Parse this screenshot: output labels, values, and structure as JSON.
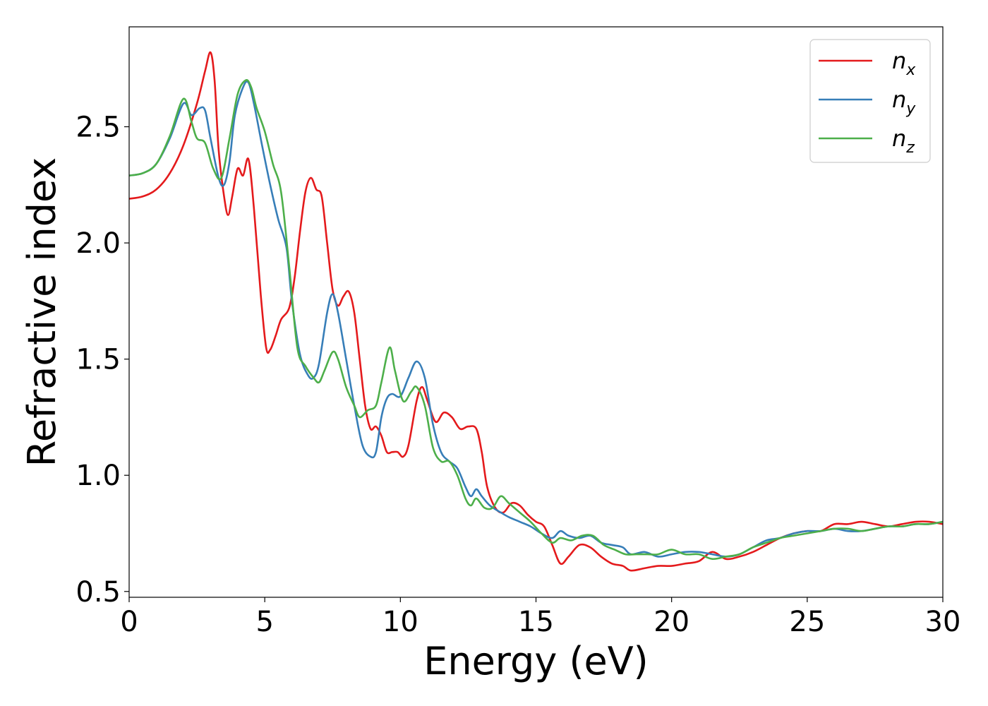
{
  "chart_data": {
    "type": "line",
    "xlabel": "Energy (eV)",
    "ylabel": "Refractive index",
    "xlim": [
      0,
      30
    ],
    "ylim": [
      0.475,
      2.93
    ],
    "xticks": [
      0,
      5,
      10,
      15,
      20,
      25,
      30
    ],
    "xtick_labels": [
      "0",
      "5",
      "10",
      "15",
      "20",
      "25",
      "30"
    ],
    "yticks": [
      0.5,
      1.0,
      1.5,
      2.0,
      2.5
    ],
    "ytick_labels": [
      "0.5",
      "1.0",
      "1.5",
      "2.0",
      "2.5"
    ],
    "grid": false,
    "legend_position": "top-right",
    "series": [
      {
        "name": "n",
        "subscript": "x",
        "color": "#e41a1c",
        "points": [
          [
            0,
            2.19
          ],
          [
            0.5,
            2.2
          ],
          [
            1,
            2.23
          ],
          [
            1.5,
            2.3
          ],
          [
            2,
            2.42
          ],
          [
            2.5,
            2.6
          ],
          [
            2.8,
            2.74
          ],
          [
            3.0,
            2.82
          ],
          [
            3.15,
            2.7
          ],
          [
            3.3,
            2.4
          ],
          [
            3.5,
            2.2
          ],
          [
            3.65,
            2.12
          ],
          [
            3.8,
            2.2
          ],
          [
            4.0,
            2.32
          ],
          [
            4.2,
            2.29
          ],
          [
            4.4,
            2.36
          ],
          [
            4.6,
            2.15
          ],
          [
            4.85,
            1.78
          ],
          [
            5.05,
            1.55
          ],
          [
            5.2,
            1.54
          ],
          [
            5.4,
            1.6
          ],
          [
            5.6,
            1.67
          ],
          [
            5.9,
            1.72
          ],
          [
            6.1,
            1.85
          ],
          [
            6.3,
            2.05
          ],
          [
            6.5,
            2.22
          ],
          [
            6.7,
            2.28
          ],
          [
            6.9,
            2.23
          ],
          [
            7.1,
            2.2
          ],
          [
            7.3,
            2.0
          ],
          [
            7.5,
            1.8
          ],
          [
            7.7,
            1.73
          ],
          [
            7.9,
            1.77
          ],
          [
            8.1,
            1.79
          ],
          [
            8.3,
            1.7
          ],
          [
            8.5,
            1.5
          ],
          [
            8.7,
            1.3
          ],
          [
            8.9,
            1.2
          ],
          [
            9.1,
            1.21
          ],
          [
            9.3,
            1.17
          ],
          [
            9.5,
            1.1
          ],
          [
            9.7,
            1.1
          ],
          [
            9.9,
            1.1
          ],
          [
            10.1,
            1.08
          ],
          [
            10.3,
            1.13
          ],
          [
            10.6,
            1.32
          ],
          [
            10.8,
            1.38
          ],
          [
            11.0,
            1.32
          ],
          [
            11.3,
            1.23
          ],
          [
            11.6,
            1.27
          ],
          [
            11.9,
            1.25
          ],
          [
            12.2,
            1.2
          ],
          [
            12.5,
            1.21
          ],
          [
            12.8,
            1.2
          ],
          [
            13.0,
            1.1
          ],
          [
            13.2,
            0.95
          ],
          [
            13.5,
            0.86
          ],
          [
            13.8,
            0.84
          ],
          [
            14.1,
            0.88
          ],
          [
            14.4,
            0.87
          ],
          [
            14.7,
            0.83
          ],
          [
            15.0,
            0.8
          ],
          [
            15.3,
            0.78
          ],
          [
            15.6,
            0.7
          ],
          [
            15.9,
            0.62
          ],
          [
            16.2,
            0.65
          ],
          [
            16.6,
            0.7
          ],
          [
            17.0,
            0.69
          ],
          [
            17.4,
            0.65
          ],
          [
            17.8,
            0.62
          ],
          [
            18.2,
            0.61
          ],
          [
            18.5,
            0.59
          ],
          [
            19.0,
            0.6
          ],
          [
            19.5,
            0.61
          ],
          [
            20.0,
            0.61
          ],
          [
            20.5,
            0.62
          ],
          [
            21.0,
            0.63
          ],
          [
            21.5,
            0.67
          ],
          [
            22.0,
            0.64
          ],
          [
            22.5,
            0.65
          ],
          [
            23.0,
            0.67
          ],
          [
            23.5,
            0.7
          ],
          [
            24.0,
            0.73
          ],
          [
            24.5,
            0.75
          ],
          [
            25.0,
            0.76
          ],
          [
            25.5,
            0.76
          ],
          [
            26.0,
            0.79
          ],
          [
            26.5,
            0.79
          ],
          [
            27.0,
            0.8
          ],
          [
            27.5,
            0.79
          ],
          [
            28.0,
            0.78
          ],
          [
            28.5,
            0.79
          ],
          [
            29.0,
            0.8
          ],
          [
            29.5,
            0.8
          ],
          [
            30.0,
            0.79
          ]
        ]
      },
      {
        "name": "n",
        "subscript": "y",
        "color": "#377eb8",
        "points": [
          [
            0,
            2.29
          ],
          [
            0.5,
            2.3
          ],
          [
            1,
            2.34
          ],
          [
            1.5,
            2.45
          ],
          [
            2.0,
            2.6
          ],
          [
            2.3,
            2.55
          ],
          [
            2.6,
            2.58
          ],
          [
            2.8,
            2.57
          ],
          [
            3.0,
            2.45
          ],
          [
            3.3,
            2.28
          ],
          [
            3.5,
            2.25
          ],
          [
            3.7,
            2.35
          ],
          [
            3.9,
            2.55
          ],
          [
            4.2,
            2.67
          ],
          [
            4.4,
            2.69
          ],
          [
            4.6,
            2.6
          ],
          [
            4.9,
            2.42
          ],
          [
            5.2,
            2.25
          ],
          [
            5.5,
            2.1
          ],
          [
            5.8,
            1.98
          ],
          [
            6.0,
            1.75
          ],
          [
            6.3,
            1.52
          ],
          [
            6.6,
            1.43
          ],
          [
            6.8,
            1.42
          ],
          [
            7.0,
            1.48
          ],
          [
            7.3,
            1.7
          ],
          [
            7.5,
            1.78
          ],
          [
            7.7,
            1.7
          ],
          [
            8.0,
            1.5
          ],
          [
            8.3,
            1.3
          ],
          [
            8.6,
            1.13
          ],
          [
            8.9,
            1.08
          ],
          [
            9.1,
            1.1
          ],
          [
            9.3,
            1.25
          ],
          [
            9.5,
            1.33
          ],
          [
            9.7,
            1.35
          ],
          [
            10.0,
            1.34
          ],
          [
            10.3,
            1.42
          ],
          [
            10.6,
            1.49
          ],
          [
            10.9,
            1.42
          ],
          [
            11.2,
            1.22
          ],
          [
            11.5,
            1.1
          ],
          [
            11.8,
            1.06
          ],
          [
            12.1,
            1.03
          ],
          [
            12.4,
            0.95
          ],
          [
            12.6,
            0.91
          ],
          [
            12.8,
            0.94
          ],
          [
            13.0,
            0.91
          ],
          [
            13.3,
            0.87
          ],
          [
            13.7,
            0.84
          ],
          [
            14.0,
            0.82
          ],
          [
            14.4,
            0.8
          ],
          [
            14.8,
            0.78
          ],
          [
            15.2,
            0.75
          ],
          [
            15.6,
            0.73
          ],
          [
            15.9,
            0.76
          ],
          [
            16.2,
            0.74
          ],
          [
            16.6,
            0.73
          ],
          [
            17.0,
            0.74
          ],
          [
            17.4,
            0.71
          ],
          [
            17.8,
            0.7
          ],
          [
            18.2,
            0.69
          ],
          [
            18.5,
            0.66
          ],
          [
            19.0,
            0.67
          ],
          [
            19.5,
            0.65
          ],
          [
            20.0,
            0.66
          ],
          [
            20.5,
            0.67
          ],
          [
            21.0,
            0.67
          ],
          [
            21.5,
            0.66
          ],
          [
            22.0,
            0.65
          ],
          [
            22.5,
            0.66
          ],
          [
            23.0,
            0.69
          ],
          [
            23.5,
            0.72
          ],
          [
            24.0,
            0.73
          ],
          [
            24.5,
            0.75
          ],
          [
            25.0,
            0.76
          ],
          [
            25.5,
            0.76
          ],
          [
            26.0,
            0.77
          ],
          [
            26.5,
            0.76
          ],
          [
            27.0,
            0.76
          ],
          [
            27.5,
            0.77
          ],
          [
            28.0,
            0.78
          ],
          [
            28.5,
            0.78
          ],
          [
            29.0,
            0.79
          ],
          [
            29.5,
            0.79
          ],
          [
            30.0,
            0.8
          ]
        ]
      },
      {
        "name": "n",
        "subscript": "z",
        "color": "#4daf4a",
        "points": [
          [
            0,
            2.29
          ],
          [
            0.5,
            2.3
          ],
          [
            1,
            2.34
          ],
          [
            1.5,
            2.46
          ],
          [
            2.0,
            2.62
          ],
          [
            2.3,
            2.52
          ],
          [
            2.5,
            2.45
          ],
          [
            2.8,
            2.43
          ],
          [
            3.1,
            2.32
          ],
          [
            3.4,
            2.28
          ],
          [
            3.7,
            2.45
          ],
          [
            4.0,
            2.64
          ],
          [
            4.3,
            2.7
          ],
          [
            4.5,
            2.67
          ],
          [
            4.7,
            2.58
          ],
          [
            5.0,
            2.48
          ],
          [
            5.3,
            2.34
          ],
          [
            5.6,
            2.22
          ],
          [
            5.9,
            1.9
          ],
          [
            6.2,
            1.55
          ],
          [
            6.5,
            1.47
          ],
          [
            6.8,
            1.42
          ],
          [
            7.0,
            1.4
          ],
          [
            7.2,
            1.45
          ],
          [
            7.5,
            1.53
          ],
          [
            7.7,
            1.5
          ],
          [
            8.0,
            1.38
          ],
          [
            8.3,
            1.3
          ],
          [
            8.5,
            1.25
          ],
          [
            8.8,
            1.28
          ],
          [
            9.1,
            1.3
          ],
          [
            9.3,
            1.4
          ],
          [
            9.6,
            1.55
          ],
          [
            9.8,
            1.45
          ],
          [
            10.1,
            1.32
          ],
          [
            10.4,
            1.36
          ],
          [
            10.6,
            1.38
          ],
          [
            10.9,
            1.3
          ],
          [
            11.2,
            1.12
          ],
          [
            11.5,
            1.06
          ],
          [
            11.8,
            1.06
          ],
          [
            12.1,
            1.0
          ],
          [
            12.4,
            0.9
          ],
          [
            12.6,
            0.87
          ],
          [
            12.8,
            0.9
          ],
          [
            13.1,
            0.86
          ],
          [
            13.4,
            0.86
          ],
          [
            13.7,
            0.91
          ],
          [
            14.0,
            0.88
          ],
          [
            14.4,
            0.84
          ],
          [
            14.8,
            0.8
          ],
          [
            15.2,
            0.75
          ],
          [
            15.6,
            0.71
          ],
          [
            15.9,
            0.73
          ],
          [
            16.3,
            0.72
          ],
          [
            16.7,
            0.74
          ],
          [
            17.1,
            0.74
          ],
          [
            17.5,
            0.7
          ],
          [
            17.9,
            0.68
          ],
          [
            18.3,
            0.66
          ],
          [
            18.7,
            0.66
          ],
          [
            19.1,
            0.66
          ],
          [
            19.5,
            0.66
          ],
          [
            20.0,
            0.68
          ],
          [
            20.5,
            0.66
          ],
          [
            21.0,
            0.66
          ],
          [
            21.5,
            0.64
          ],
          [
            22.0,
            0.65
          ],
          [
            22.5,
            0.66
          ],
          [
            23.0,
            0.69
          ],
          [
            23.5,
            0.71
          ],
          [
            24.0,
            0.73
          ],
          [
            24.5,
            0.74
          ],
          [
            25.0,
            0.75
          ],
          [
            25.5,
            0.76
          ],
          [
            26.0,
            0.77
          ],
          [
            26.5,
            0.77
          ],
          [
            27.0,
            0.76
          ],
          [
            27.5,
            0.77
          ],
          [
            28.0,
            0.78
          ],
          [
            28.5,
            0.78
          ],
          [
            29.0,
            0.79
          ],
          [
            29.5,
            0.79
          ],
          [
            30.0,
            0.8
          ]
        ]
      }
    ]
  }
}
